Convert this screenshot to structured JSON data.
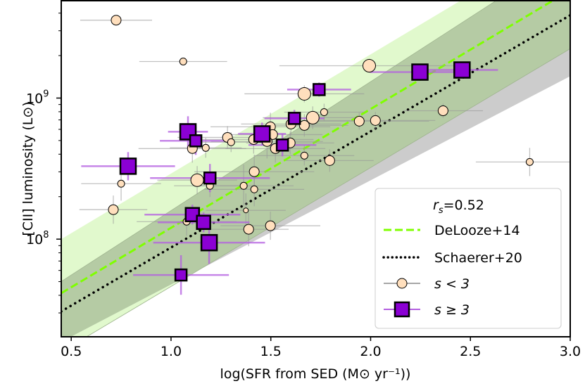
{
  "chart_data": {
    "type": "scatter",
    "xlabel": "log(SFR from SED (M⊙ yr⁻¹))",
    "ylabel": "[CII] luminosity (L⊙)",
    "xlim": [
      0.45,
      3.0
    ],
    "ylim_log10": [
      7.308,
      9.69
    ],
    "yscale": "log",
    "xticks": [
      0.5,
      1.0,
      1.5,
      2.0,
      2.5,
      3.0
    ],
    "xtick_labels": [
      "0.5",
      "1.0",
      "1.5",
      "2.0",
      "2.5",
      "3.0"
    ],
    "yticks_log10": [
      8,
      9
    ],
    "ytick_labels": [
      {
        "base": "10",
        "exp": "8"
      },
      {
        "base": "10",
        "exp": "9"
      }
    ],
    "legend": {
      "placement": "lower-right",
      "title": "r_s=0.52",
      "title_parts": {
        "var": "r",
        "sub": "s",
        "rest": "=0.52"
      },
      "entries": [
        "DeLooze+14",
        "Schaerer+20",
        "s < 3",
        "s ≥ 3"
      ]
    },
    "colors": {
      "circle_fill": "#ffdfbd",
      "square_fill": "#8b00d4",
      "square_err": "#b35ee0",
      "circle_err": "#999999",
      "delooze_line": "#7fff00",
      "schaerer_line": "#000000",
      "green_band": "#e1f9cd",
      "grey_band": "#cccccc",
      "overlap_band": "#b5cba4"
    },
    "relations": [
      {
        "name": "DeLooze+14",
        "style": "dashed",
        "x": [
          0.45,
          3.0
        ],
        "logL": [
          7.617,
          9.764
        ],
        "band_upper": [
          8.0,
          10.155
        ],
        "band_lower": [
          7.201,
          9.35
        ]
      },
      {
        "name": "Schaerer+20",
        "style": "dotted",
        "x": [
          0.45,
          3.0
        ],
        "logL": [
          7.488,
          9.587
        ],
        "band_upper": [
          7.7,
          10.03
        ],
        "band_lower": [
          7.273,
          9.155
        ]
      }
    ],
    "point_fields": [
      "logSFR",
      "logL",
      "xerr",
      "yerr",
      "size_class"
    ],
    "series": [
      {
        "name": "s < 3",
        "marker": "circle",
        "points": [
          [
            0.725,
            9.552,
            0.18,
            0.0,
            2
          ],
          [
            1.061,
            9.259,
            0.22,
            0.0,
            1
          ],
          [
            0.75,
            8.393,
            0.2,
            0.12,
            1
          ],
          [
            0.711,
            8.209,
            0.17,
            0.1,
            2
          ],
          [
            1.107,
            8.642,
            0.27,
            0.1,
            2
          ],
          [
            1.174,
            8.647,
            0.18,
            0.07,
            1
          ],
          [
            1.131,
            8.418,
            0.2,
            0.1,
            3
          ],
          [
            1.195,
            8.378,
            0.18,
            0.08,
            1
          ],
          [
            1.283,
            8.721,
            0.25,
            0.08,
            2
          ],
          [
            1.301,
            8.687,
            0.2,
            0.07,
            1
          ],
          [
            1.668,
            9.03,
            0.3,
            0.06,
            3
          ],
          [
            1.71,
            8.861,
            0.25,
            0.08,
            3
          ],
          [
            1.767,
            8.9,
            0.2,
            0.06,
            1
          ],
          [
            1.601,
            8.816,
            0.25,
            0.08,
            2
          ],
          [
            1.668,
            8.806,
            0.22,
            0.08,
            2
          ],
          [
            1.498,
            8.796,
            0.3,
            0.1,
            2
          ],
          [
            1.509,
            8.741,
            0.25,
            0.08,
            2
          ],
          [
            1.414,
            8.706,
            0.3,
            0.1,
            2
          ],
          [
            1.481,
            8.692,
            0.28,
            0.12,
            2
          ],
          [
            1.523,
            8.642,
            0.25,
            0.1,
            2
          ],
          [
            1.597,
            8.682,
            0.22,
            0.08,
            2
          ],
          [
            1.668,
            8.592,
            0.25,
            0.07,
            1
          ],
          [
            1.795,
            8.557,
            0.22,
            0.08,
            2
          ],
          [
            1.417,
            8.478,
            0.3,
            0.12,
            2
          ],
          [
            1.993,
            9.229,
            0.45,
            0.05,
            3
          ],
          [
            1.943,
            8.836,
            0.35,
            0.06,
            2
          ],
          [
            2.024,
            8.841,
            0.3,
            0.06,
            2
          ],
          [
            2.363,
            8.91,
            0.2,
            0.05,
            2
          ],
          [
            2.797,
            8.547,
            0.27,
            0.1,
            1
          ],
          [
            1.364,
            8.378,
            0.25,
            0.15,
            1
          ],
          [
            1.417,
            8.353,
            0.25,
            0.12,
            1
          ],
          [
            1.375,
            8.204,
            0.2,
            0.12,
            0
          ],
          [
            1.078,
            8.124,
            0.25,
            0.1,
            1
          ],
          [
            1.389,
            8.07,
            0.2,
            0.12,
            2
          ],
          [
            1.498,
            8.095,
            0.25,
            0.1,
            2
          ]
        ]
      },
      {
        "name": "s ≥ 3",
        "marker": "square",
        "points": [
          [
            0.785,
            8.517,
            0.235,
            0.1,
            3
          ],
          [
            1.085,
            8.761,
            0.1,
            0.11,
            3
          ],
          [
            1.124,
            8.697,
            0.18,
            0.1,
            1
          ],
          [
            1.195,
            8.433,
            0.3,
            0.1,
            1
          ],
          [
            1.456,
            8.746,
            0.12,
            0.08,
            3
          ],
          [
            1.558,
            8.667,
            0.17,
            0.08,
            1
          ],
          [
            1.618,
            8.856,
            0.15,
            0.06,
            1
          ],
          [
            1.742,
            9.06,
            0.16,
            0.05,
            1
          ],
          [
            2.247,
            9.184,
            0.25,
            0.05,
            3
          ],
          [
            2.458,
            9.199,
            0.18,
            0.05,
            3
          ],
          [
            1.107,
            8.174,
            0.24,
            0.07,
            2
          ],
          [
            1.163,
            8.119,
            0.23,
            0.07,
            2
          ],
          [
            1.191,
            7.975,
            0.28,
            0.15,
            3
          ],
          [
            1.05,
            7.746,
            0.24,
            0.14,
            1
          ]
        ]
      }
    ]
  }
}
